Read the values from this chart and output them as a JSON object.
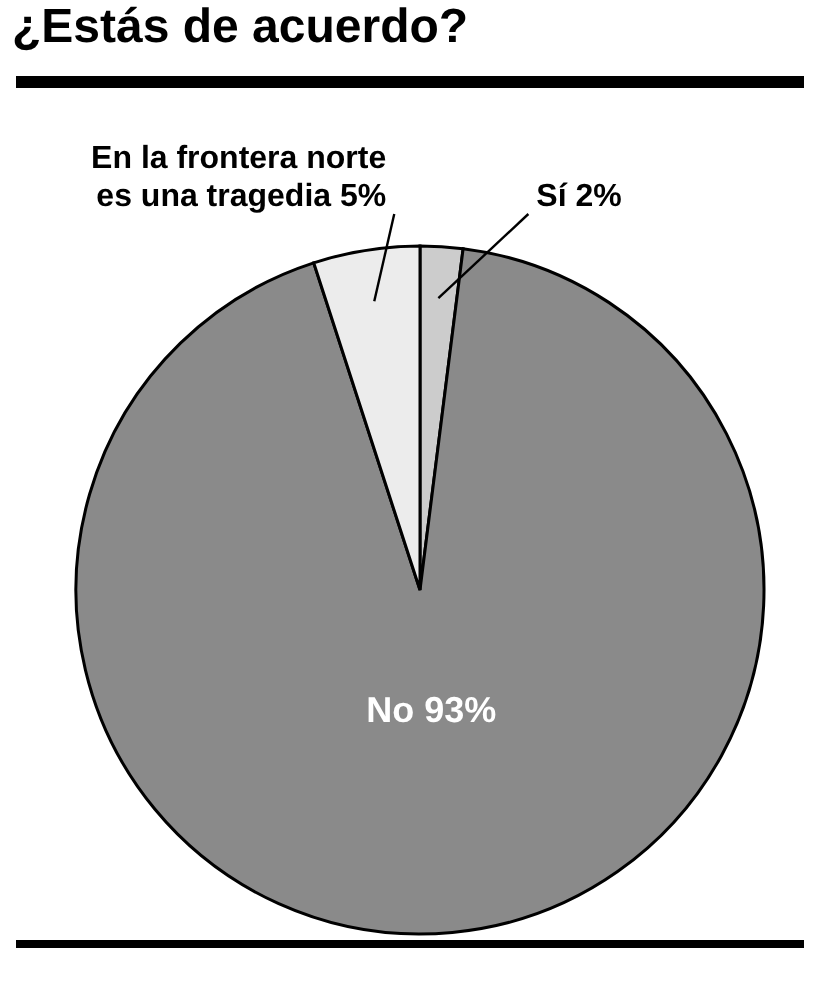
{
  "chart_data": {
    "type": "pie",
    "title": "¿Estás de acuerdo?",
    "categories": [
      "Sí",
      "No",
      "En la frontera norte es una tragedia"
    ],
    "values": [
      2,
      93,
      5
    ],
    "colors": [
      "#cccccc",
      "#8a8a8a",
      "#ececec"
    ],
    "value_labels": [
      "2%",
      "93%",
      "5%"
    ],
    "legend": false
  }
}
